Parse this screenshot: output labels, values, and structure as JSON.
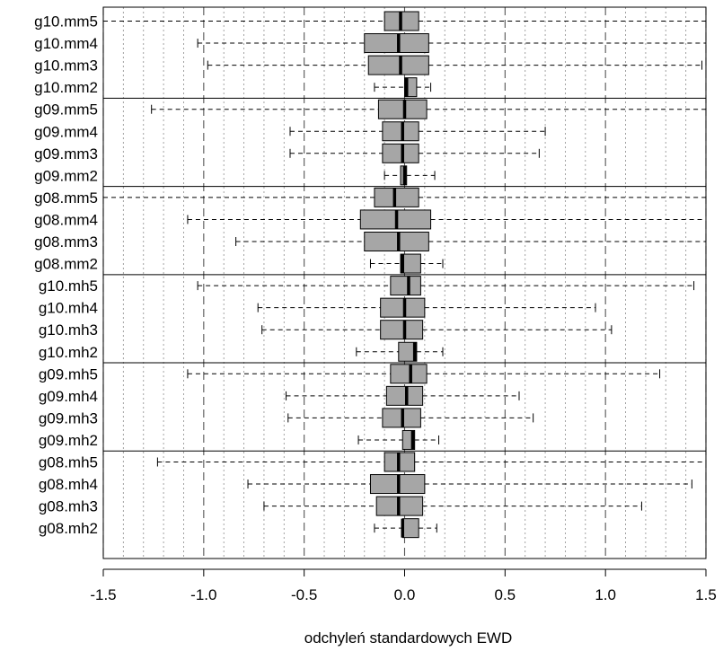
{
  "chart_data": {
    "type": "boxplot",
    "orientation": "horizontal",
    "xlabel": "odchyleń standardowych EWD",
    "xlim": [
      -1.5,
      1.5
    ],
    "x_ticks": [
      -1.5,
      -1.0,
      -0.5,
      0.0,
      0.5,
      1.0,
      1.5
    ],
    "x_tick_labels": [
      "-1.5",
      "-1.0",
      "-0.5",
      "0.0",
      "0.5",
      "1.0",
      "1.5"
    ],
    "major_grid": [
      -1.5,
      -1.0,
      -0.5,
      0.0,
      0.5,
      1.0,
      1.5
    ],
    "minor_grid_step": 0.1,
    "group_separators_after": [
      "g10.mm2",
      "g09.mm2",
      "g08.mm2",
      "g10.mh2",
      "g09.mh2"
    ],
    "box_color": "#a6a6a6",
    "boxes": [
      {
        "label": "g10.mm5",
        "whisker_low": -1.5,
        "q1": -0.1,
        "median": -0.02,
        "q3": 0.07,
        "whisker_high": 1.5
      },
      {
        "label": "g10.mm4",
        "whisker_low": -1.03,
        "q1": -0.2,
        "median": -0.03,
        "q3": 0.12,
        "whisker_high": 1.5
      },
      {
        "label": "g10.mm3",
        "whisker_low": -0.98,
        "q1": -0.18,
        "median": -0.02,
        "q3": 0.12,
        "whisker_high": 1.48
      },
      {
        "label": "g10.mm2",
        "whisker_low": -0.15,
        "q1": 0.0,
        "median": 0.01,
        "q3": 0.06,
        "whisker_high": 0.13
      },
      {
        "label": "g09.mm5",
        "whisker_low": -1.26,
        "q1": -0.13,
        "median": 0.0,
        "q3": 0.11,
        "whisker_high": 1.5
      },
      {
        "label": "g09.mm4",
        "whisker_low": -0.57,
        "q1": -0.11,
        "median": -0.01,
        "q3": 0.07,
        "whisker_high": 0.7
      },
      {
        "label": "g09.mm3",
        "whisker_low": -0.57,
        "q1": -0.11,
        "median": -0.01,
        "q3": 0.07,
        "whisker_high": 0.67
      },
      {
        "label": "g09.mm2",
        "whisker_low": -0.1,
        "q1": -0.02,
        "median": 0.0,
        "q3": 0.01,
        "whisker_high": 0.15
      },
      {
        "label": "g08.mm5",
        "whisker_low": -1.5,
        "q1": -0.15,
        "median": -0.05,
        "q3": 0.07,
        "whisker_high": 1.5
      },
      {
        "label": "g08.mm4",
        "whisker_low": -1.08,
        "q1": -0.22,
        "median": -0.04,
        "q3": 0.13,
        "whisker_high": 1.5
      },
      {
        "label": "g08.mm3",
        "whisker_low": -0.84,
        "q1": -0.2,
        "median": -0.03,
        "q3": 0.12,
        "whisker_high": 1.5
      },
      {
        "label": "g08.mm2",
        "whisker_low": -0.17,
        "q1": -0.02,
        "median": -0.01,
        "q3": 0.08,
        "whisker_high": 0.19
      },
      {
        "label": "g10.mh5",
        "whisker_low": -1.03,
        "q1": -0.07,
        "median": 0.02,
        "q3": 0.08,
        "whisker_high": 1.44
      },
      {
        "label": "g10.mh4",
        "whisker_low": -0.73,
        "q1": -0.12,
        "median": 0.0,
        "q3": 0.1,
        "whisker_high": 0.95
      },
      {
        "label": "g10.mh3",
        "whisker_low": -0.71,
        "q1": -0.12,
        "median": 0.0,
        "q3": 0.09,
        "whisker_high": 1.03
      },
      {
        "label": "g10.mh2",
        "whisker_low": -0.24,
        "q1": -0.03,
        "median": 0.05,
        "q3": 0.06,
        "whisker_high": 0.19
      },
      {
        "label": "g09.mh5",
        "whisker_low": -1.08,
        "q1": -0.07,
        "median": 0.03,
        "q3": 0.11,
        "whisker_high": 1.27
      },
      {
        "label": "g09.mh4",
        "whisker_low": -0.59,
        "q1": -0.09,
        "median": 0.01,
        "q3": 0.09,
        "whisker_high": 0.57
      },
      {
        "label": "g09.mh3",
        "whisker_low": -0.58,
        "q1": -0.11,
        "median": -0.01,
        "q3": 0.08,
        "whisker_high": 0.64
      },
      {
        "label": "g09.mh2",
        "whisker_low": -0.23,
        "q1": -0.01,
        "median": 0.04,
        "q3": 0.05,
        "whisker_high": 0.17
      },
      {
        "label": "g08.mh5",
        "whisker_low": -1.23,
        "q1": -0.1,
        "median": -0.03,
        "q3": 0.05,
        "whisker_high": 1.5
      },
      {
        "label": "g08.mh4",
        "whisker_low": -0.78,
        "q1": -0.17,
        "median": -0.03,
        "q3": 0.1,
        "whisker_high": 1.43
      },
      {
        "label": "g08.mh3",
        "whisker_low": -0.7,
        "q1": -0.14,
        "median": -0.03,
        "q3": 0.09,
        "whisker_high": 1.18
      },
      {
        "label": "g08.mh2",
        "whisker_low": -0.15,
        "q1": -0.01,
        "median": -0.01,
        "q3": 0.07,
        "whisker_high": 0.16
      }
    ]
  }
}
